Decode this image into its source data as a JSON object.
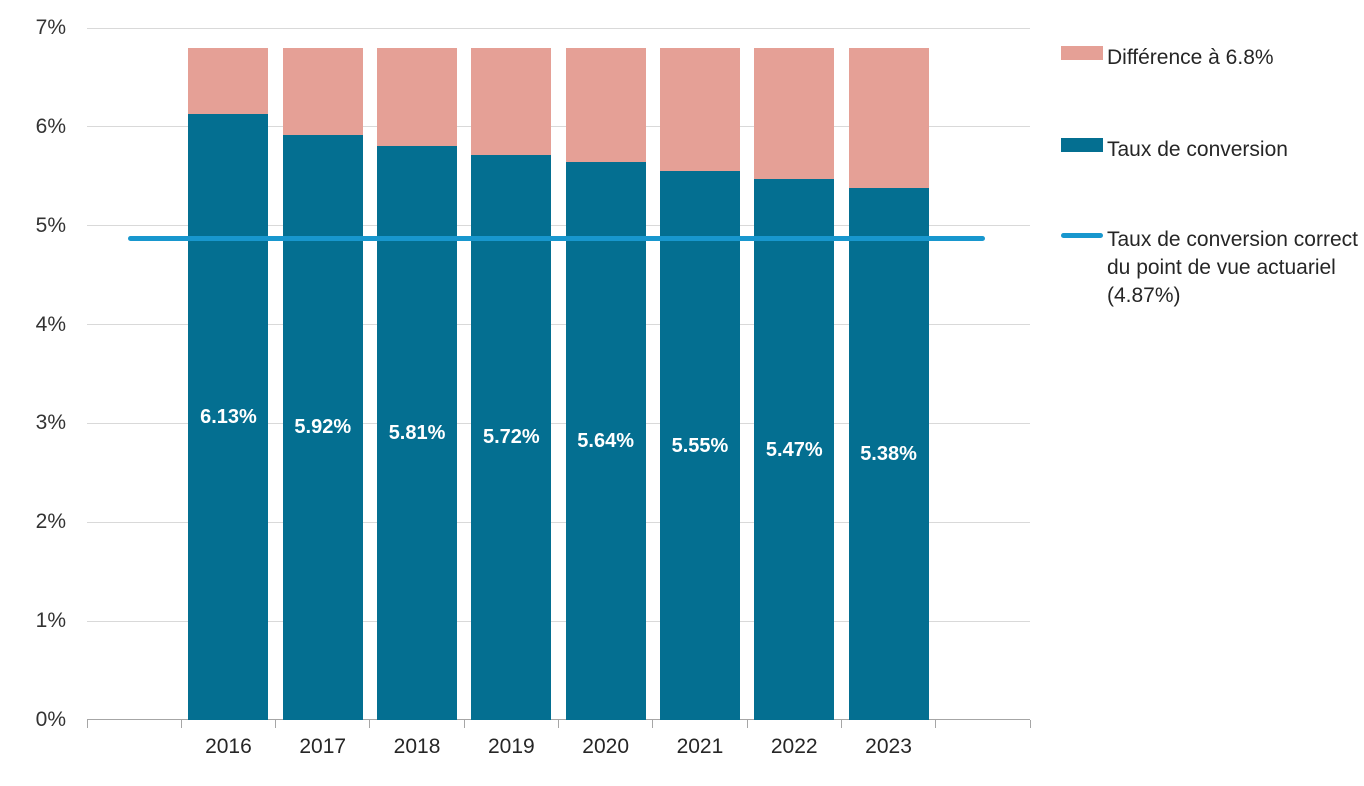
{
  "chart_data": {
    "type": "bar",
    "stacked": true,
    "categories": [
      "2016",
      "2017",
      "2018",
      "2019",
      "2020",
      "2021",
      "2022",
      "2023"
    ],
    "series": [
      {
        "name": "Taux de conversion",
        "color": "#046F91",
        "values": [
          6.13,
          5.92,
          5.81,
          5.72,
          5.64,
          5.55,
          5.47,
          5.38
        ],
        "data_labels": [
          "6.13%",
          "5.92%",
          "5.81%",
          "5.72%",
          "5.64%",
          "5.55%",
          "5.47%",
          "5.38%"
        ],
        "data_label_color": "#FFFFFF"
      },
      {
        "name": "Différence à 6.8%",
        "color": "#E5A096",
        "values": [
          0.67,
          0.88,
          0.99,
          1.08,
          1.16,
          1.25,
          1.33,
          1.42
        ]
      }
    ],
    "stack_target_total": 6.8,
    "reference_line": {
      "label": "Taux de conversion correct du point de vue actuariel (4.87%)",
      "value": 4.87,
      "color": "#1897CE"
    },
    "ylim": [
      0,
      7
    ],
    "yticks": [
      {
        "value": 0,
        "label": "0%"
      },
      {
        "value": 1,
        "label": "1%"
      },
      {
        "value": 2,
        "label": "2%"
      },
      {
        "value": 3,
        "label": "3%"
      },
      {
        "value": 4,
        "label": "4%"
      },
      {
        "value": 5,
        "label": "5%"
      },
      {
        "value": 6,
        "label": "6%"
      },
      {
        "value": 7,
        "label": "7%"
      }
    ],
    "grid": true,
    "gridline_color": "#D9D9D9",
    "axis_line_color": "#A6A6A6",
    "axis_text_color": "#333333",
    "legend_position": "right"
  },
  "legend": {
    "items": [
      {
        "label": "Différence à 6.8%",
        "swatch": "rect",
        "color": "#E5A096"
      },
      {
        "label": "Taux de conversion",
        "swatch": "rect",
        "color": "#046F91"
      },
      {
        "label": "Taux de conversion correct du point de vue actuariel (4.87%)",
        "swatch": "line",
        "color": "#1897CE"
      }
    ]
  }
}
